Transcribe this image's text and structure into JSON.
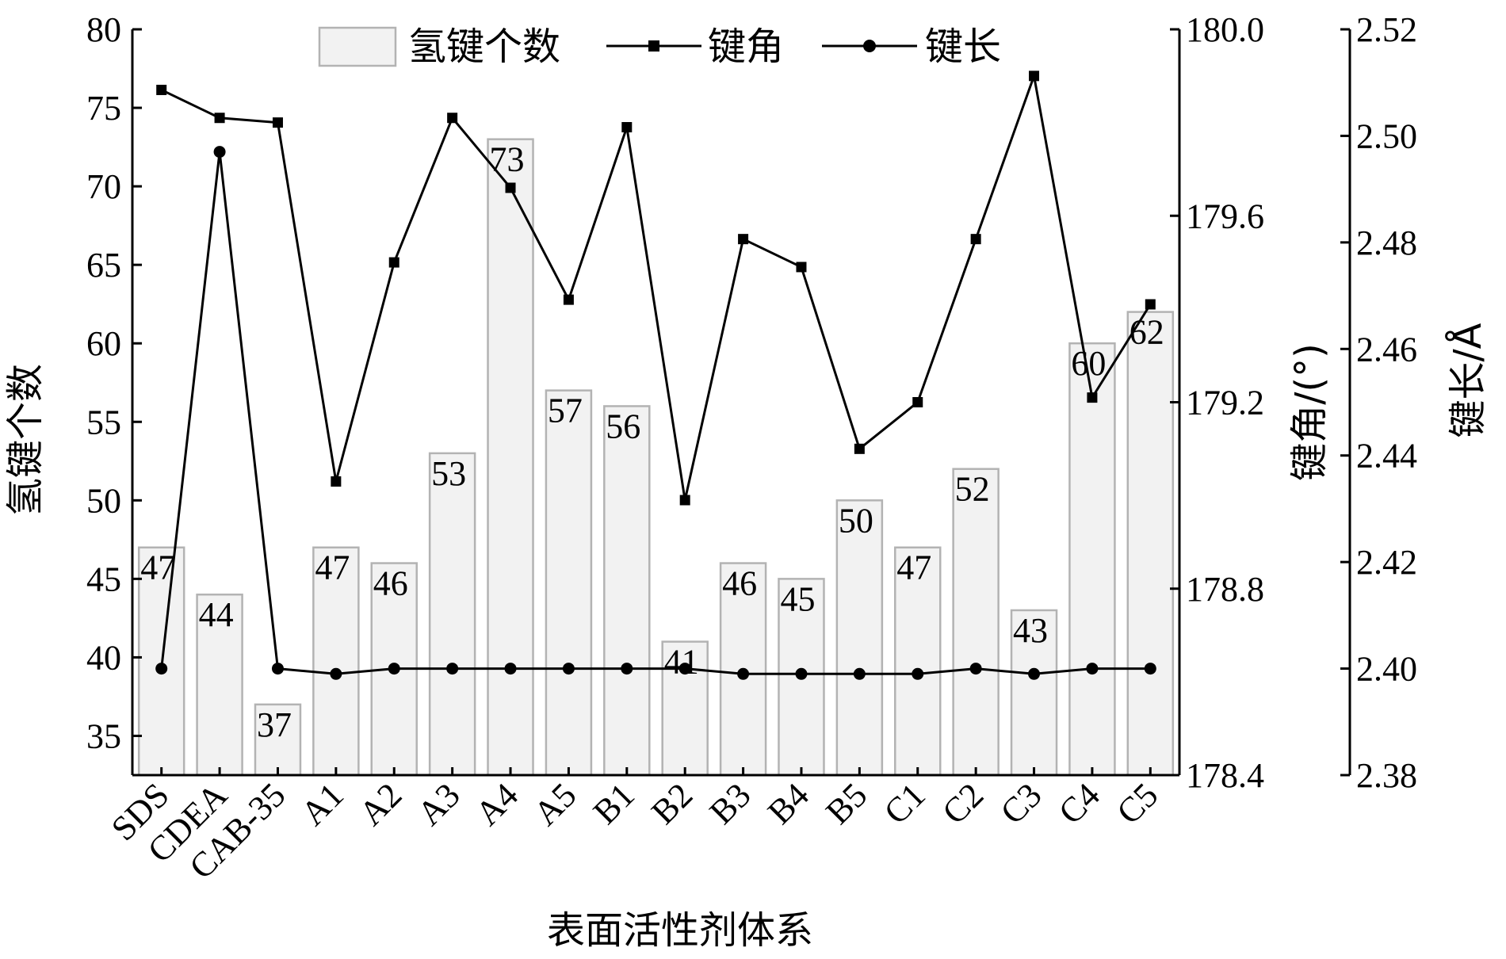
{
  "chart_data": {
    "type": "bar",
    "categories": [
      "SDS",
      "CDEA",
      "CAB-35",
      "A1",
      "A2",
      "A3",
      "A4",
      "A5",
      "B1",
      "B2",
      "B3",
      "B4",
      "B5",
      "C1",
      "C2",
      "C3",
      "C4",
      "C5"
    ],
    "xlabel": "表面活性剂体系",
    "grid": false,
    "legend_position": "top",
    "series": [
      {
        "name": "氢键个数",
        "type": "bar",
        "axis": "left",
        "values": [
          47,
          44,
          37,
          47,
          46,
          53,
          73,
          57,
          56,
          41,
          46,
          45,
          50,
          47,
          52,
          43,
          60,
          62
        ],
        "color": "#f2f2f2",
        "edge_color": "#b3b3b3"
      },
      {
        "name": "键角",
        "type": "line",
        "marker": "square",
        "axis": "right1",
        "values": [
          179.87,
          179.81,
          179.8,
          179.03,
          179.5,
          179.81,
          179.66,
          179.42,
          179.79,
          178.99,
          179.55,
          179.49,
          179.1,
          179.2,
          179.55,
          179.9,
          179.21,
          179.41
        ],
        "color": "#000000"
      },
      {
        "name": "键长",
        "type": "line",
        "marker": "circle",
        "axis": "right2",
        "values": [
          2.4,
          2.497,
          2.4,
          2.399,
          2.4,
          2.4,
          2.4,
          2.4,
          2.4,
          2.4,
          2.399,
          2.399,
          2.399,
          2.399,
          2.4,
          2.399,
          2.4,
          2.4
        ],
        "color": "#000000"
      }
    ],
    "axes": {
      "left": {
        "label": "氢键个数",
        "ylim": [
          32.5,
          80
        ],
        "ticks": [
          35,
          40,
          45,
          50,
          55,
          60,
          65,
          70,
          75,
          80
        ],
        "tick_labels": [
          "35",
          "40",
          "45",
          "50",
          "55",
          "60",
          "65",
          "70",
          "75",
          "80"
        ]
      },
      "right1": {
        "label": "键角/(°)",
        "ylim": [
          178.4,
          180.0
        ],
        "ticks": [
          178.4,
          178.8,
          179.2,
          179.6,
          180.0
        ],
        "tick_labels": [
          "178.4",
          "178.8",
          "179.2",
          "179.6",
          "180.0"
        ]
      },
      "right2": {
        "label": "键长/Å",
        "ylim": [
          2.38,
          2.52
        ],
        "ticks": [
          2.38,
          2.4,
          2.42,
          2.44,
          2.46,
          2.48,
          2.5,
          2.52
        ],
        "tick_labels": [
          "2.38",
          "2.40",
          "2.42",
          "2.44",
          "2.46",
          "2.48",
          "2.50",
          "2.52"
        ]
      }
    }
  }
}
